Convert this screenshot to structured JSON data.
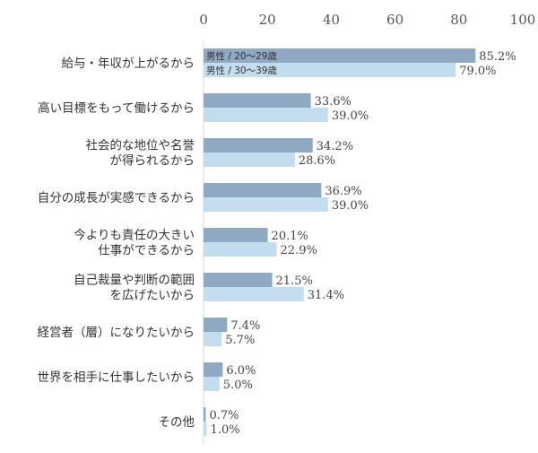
{
  "chart_data": {
    "type": "bar",
    "orientation": "horizontal",
    "xlim": [
      0,
      100
    ],
    "ticks": [
      0,
      20,
      40,
      60,
      80,
      100
    ],
    "value_suffix": "%",
    "value_format_decimals": 1,
    "categories": [
      [
        "給与・年収が上がるから"
      ],
      [
        "高い目標をもって働けるから"
      ],
      [
        "社会的な地位や名誉",
        "が得られるから"
      ],
      [
        "自分の成長が実感できるから"
      ],
      [
        "今よりも責任の大きい",
        "仕事ができるから"
      ],
      [
        "自己裁量や判断の範囲",
        "を広げたいから"
      ],
      [
        "経営者（層）になりたいから"
      ],
      [
        "世界を相手に仕事したいから"
      ],
      [
        "その他"
      ]
    ],
    "series": [
      {
        "name": "男性 / 20〜29歳",
        "color": "#8ea9c1",
        "values": [
          85.2,
          33.6,
          34.2,
          36.9,
          20.1,
          21.5,
          7.4,
          6.0,
          0.7
        ]
      },
      {
        "name": "男性 / 30〜39歳",
        "color": "#c3dcee",
        "values": [
          79.0,
          39.0,
          28.6,
          39.0,
          22.9,
          31.4,
          5.7,
          5.0,
          1.0
        ]
      }
    ],
    "legend_placement": "inside-first-bars",
    "grid": false
  }
}
